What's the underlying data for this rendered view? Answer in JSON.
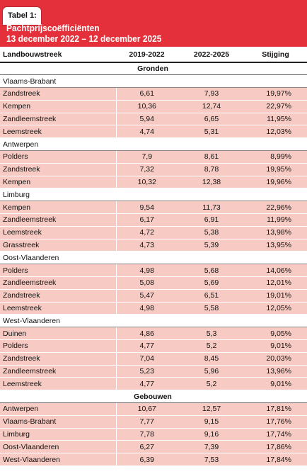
{
  "header": {
    "tab_label": "Tabel 1:",
    "title_line1": "Pachtprijscoëfficiënten",
    "title_line2": "13 december 2022 – 12 december 2025"
  },
  "columns": [
    "Landbouwstreek",
    "2019-2022",
    "2022-2025",
    "Stijging"
  ],
  "sections": [
    {
      "title": "Gronden",
      "groups": [
        {
          "region": "Vlaams-Brabant",
          "rows": [
            [
              "Zandstreek",
              "6,61",
              "7,93",
              "19,97%"
            ],
            [
              "Kempen",
              "10,36",
              "12,74",
              "22,97%"
            ],
            [
              "Zandleemstreek",
              "5,94",
              "6,65",
              "11,95%"
            ],
            [
              "Leemstreek",
              "4,74",
              "5,31",
              "12,03%"
            ]
          ]
        },
        {
          "region": "Antwerpen",
          "rows": [
            [
              "Polders",
              "7,9",
              "8,61",
              "8,99%"
            ],
            [
              "Zandstreek",
              "7,32",
              "8,78",
              "19,95%"
            ],
            [
              "Kempen",
              "10,32",
              "12,38",
              "19,96%"
            ]
          ]
        },
        {
          "region": "Limburg",
          "rows": [
            [
              "Kempen",
              "9,54",
              "11,73",
              "22,96%"
            ],
            [
              "Zandleemstreek",
              "6,17",
              "6,91",
              "11,99%"
            ],
            [
              "Leemstreek",
              "4,72",
              "5,38",
              "13,98%"
            ],
            [
              "Grasstreek",
              "4,73",
              "5,39",
              "13,95%"
            ]
          ]
        },
        {
          "region": "Oost-Vlaanderen",
          "rows": [
            [
              "Polders",
              "4,98",
              "5,68",
              "14,06%"
            ],
            [
              "Zandleemstreek",
              "5,08",
              "5,69",
              "12,01%"
            ],
            [
              "Zandstreek",
              "5,47",
              "6,51",
              "19,01%"
            ],
            [
              "Leemstreek",
              "4,98",
              "5,58",
              "12,05%"
            ]
          ]
        },
        {
          "region": "West-Vlaanderen",
          "rows": [
            [
              "Duinen",
              "4,86",
              "5,3",
              "9,05%"
            ],
            [
              "Polders",
              "4,77",
              "5,2",
              "9,01%"
            ],
            [
              "Zandstreek",
              "7,04",
              "8,45",
              "20,03%"
            ],
            [
              "Zandleemstreek",
              "5,23",
              "5,96",
              "13,96%"
            ],
            [
              "Leemstreek",
              "4,77",
              "5,2",
              "9,01%"
            ]
          ]
        }
      ]
    },
    {
      "title": "Gebouwen",
      "groups": [
        {
          "region": "",
          "rows": [
            [
              "Antwerpen",
              "10,67",
              "12,57",
              "17,81%"
            ],
            [
              "Vlaams-Brabant",
              "7,77",
              "9,15",
              "17,76%"
            ],
            [
              "Limburg",
              "7,78",
              "9,16",
              "17,74%"
            ],
            [
              "Oost-Vlaanderen",
              "6,27",
              "7,39",
              "17,86%"
            ],
            [
              "West-Vlaanderen",
              "6,39",
              "7,53",
              "17,84%"
            ]
          ]
        }
      ]
    }
  ],
  "colors": {
    "header_bg": "#e3303a",
    "row_bg": "#f7cbc3"
  }
}
